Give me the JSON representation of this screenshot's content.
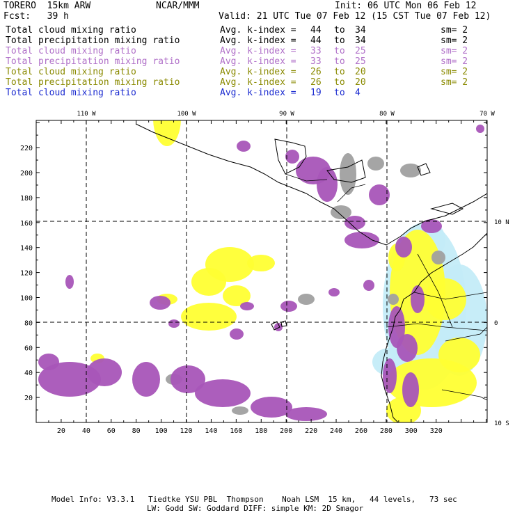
{
  "header": {
    "model": "TORERO  15km ARW",
    "center": "NCAR/MMM",
    "init": "Init: 06 UTC Mon 06 Feb 12",
    "fcst": "Fcst:   39 h",
    "valid": "Valid: 21 UTC Tue 07 Feb 12 (15 CST Tue 07 Feb 12)"
  },
  "legend": [
    {
      "field": "Total cloud mixing ratio",
      "avg": "Avg. k-index =",
      "from": "44",
      "to_word": "to",
      "to": "34",
      "sm": "sm= 2",
      "color": "#000000"
    },
    {
      "field": "Total precipitation mixing ratio",
      "avg": "Avg. k-index =",
      "from": "44",
      "to_word": "to",
      "to": "34",
      "sm": "sm= 2",
      "color": "#000000"
    },
    {
      "field": "Total cloud mixing ratio",
      "avg": "Avg. k-index =",
      "from": "33",
      "to_word": "to",
      "to": "25",
      "sm": "sm= 2",
      "color": "#b070c8"
    },
    {
      "field": "Total precipitation mixing ratio",
      "avg": "Avg. k-index =",
      "from": "33",
      "to_word": "to",
      "to": "25",
      "sm": "sm= 2",
      "color": "#b070c8"
    },
    {
      "field": "Total cloud mixing ratio",
      "avg": "Avg. k-index =",
      "from": "26",
      "to_word": "to",
      "to": "20",
      "sm": "sm= 2",
      "color": "#8a8a00"
    },
    {
      "field": "Total precipitation mixing ratio",
      "avg": "Avg. k-index =",
      "from": "26",
      "to_word": "to",
      "to": "20",
      "sm": "sm= 2",
      "color": "#8a8a00"
    },
    {
      "field": "Total cloud mixing ratio",
      "avg": "Avg. k-index =",
      "from": "19",
      "to_word": "to",
      "to": "4",
      "sm": "",
      "color": "#1a2ad0"
    }
  ],
  "map": {
    "lon_labels": [
      "110 W",
      "100 W",
      "90 W",
      "80 W",
      "70 W"
    ],
    "lat_labels": [
      "10 N",
      "0",
      "10 S"
    ],
    "y_ticks": [
      "20",
      "40",
      "60",
      "80",
      "100",
      "120",
      "140",
      "160",
      "180",
      "200",
      "220"
    ],
    "x_ticks": [
      "20",
      "40",
      "60",
      "80",
      "100",
      "120",
      "140",
      "160",
      "180",
      "200",
      "220",
      "240",
      "260",
      "280",
      "300",
      "320"
    ],
    "colors": {
      "cloud_high": "#a0a0a0",
      "precip_high": "#a855b8",
      "cloud_mid": "#ffff33",
      "precip_mid": "#ffff33",
      "cloud_low": "#c4ecf8",
      "coast": "#000000"
    }
  },
  "footer": {
    "line1": "Model Info: V3.3.1   Tiedtke YSU PBL  Thompson    Noah LSM  15 km,   44 levels,   73 sec",
    "line2": "LW: Godd SW: Goddard DIFF: simple KM: 2D Smagor"
  }
}
